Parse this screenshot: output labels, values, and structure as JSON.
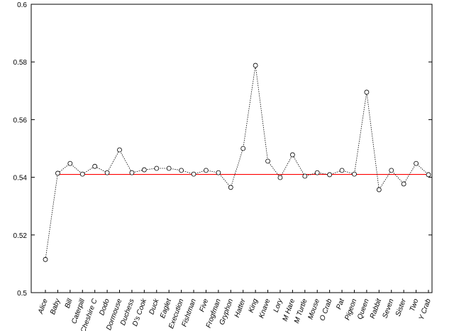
{
  "chart_data": {
    "type": "line",
    "categories": [
      "Alice",
      "Baby",
      "Bill",
      "Caterpill",
      "Cheshire C",
      "Dodo",
      "Dormouse",
      "Duchess",
      "D's Cook",
      "Duck",
      "Eaglet",
      "Execution",
      "Fishtman",
      "Five",
      "Frogfman",
      "Gryphon",
      "Hatter",
      "King",
      "Knave",
      "Lory",
      "M Hare",
      "M Turtle",
      "Mouse",
      "O Crab",
      "Pat",
      "Pigeon",
      "Queen",
      "Rabbit",
      "Seven",
      "Sister",
      "Two",
      "Y Crab"
    ],
    "series": [
      {
        "color": "#000000",
        "values": [
          0.5115,
          0.5414,
          0.5448,
          0.5411,
          0.5438,
          0.5416,
          0.5495,
          0.5416,
          0.5426,
          0.5431,
          0.5431,
          0.5424,
          0.5411,
          0.5424,
          0.5416,
          0.5365,
          0.55,
          0.5788,
          0.5456,
          0.5399,
          0.5478,
          0.5404,
          0.5416,
          0.5409,
          0.5424,
          0.5411,
          0.5695,
          0.5357,
          0.5424,
          0.5377,
          0.5448,
          0.5409
        ]
      }
    ],
    "reference_line": {
      "value": 0.541,
      "color": "#ff0000"
    },
    "ylim": [
      0.5,
      0.6
    ],
    "yticks": [
      0.5,
      0.52,
      0.54,
      0.56,
      0.58,
      0.6
    ],
    "grid": false
  }
}
